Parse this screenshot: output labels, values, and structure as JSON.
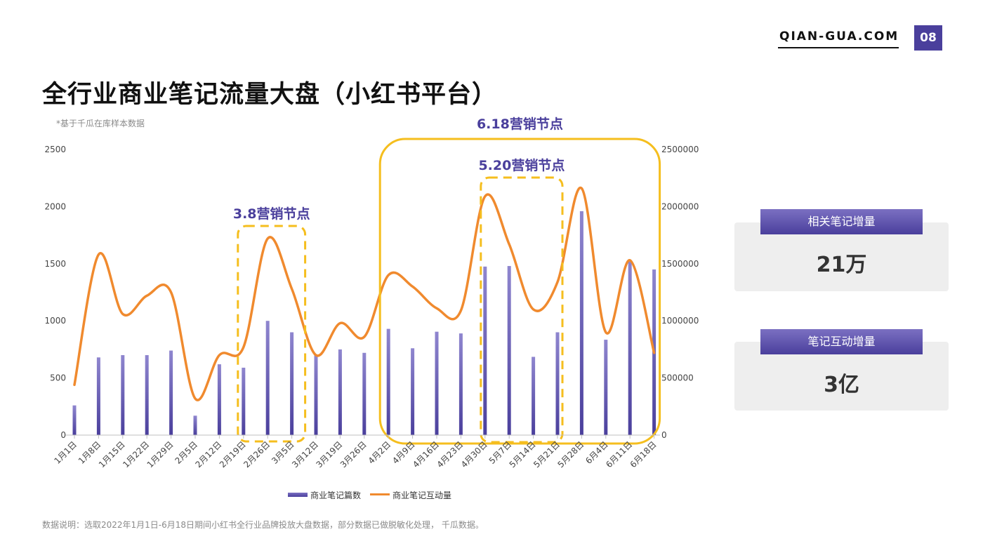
{
  "header": {
    "brand": "QIAN-GUA.COM",
    "page_number": "08"
  },
  "title": "全行业商业笔记流量大盘（小红书平台）",
  "subtitle": "*基于千瓜在库样本数据",
  "footnote": "数据说明：选取2022年1月1日-6月18日期间小红书全行业品牌投放大盘数据，部分数据已做脱敏化处理， 千瓜数据。",
  "cards": [
    {
      "label": "相关笔记增量",
      "value": "21万"
    },
    {
      "label": "笔记互动增量",
      "value": "3亿"
    }
  ],
  "colors": {
    "bar": "#5b4fa8",
    "line": "#f08a2e",
    "highlight": "#f5be1e",
    "annotation": "#4a3f9c"
  },
  "chart_data": {
    "type": "bar",
    "categories": [
      "1月1日",
      "1月8日",
      "1月15日",
      "1月22日",
      "1月29日",
      "2月5日",
      "2月12日",
      "2月19日",
      "2月26日",
      "3月5日",
      "3月12日",
      "3月19日",
      "3月26日",
      "4月2日",
      "4月9日",
      "4月16日",
      "4月23日",
      "4月30日",
      "5月7日",
      "5月14日",
      "5月21日",
      "5月28日",
      "6月4日",
      "6月11日",
      "6月18日"
    ],
    "series": [
      {
        "name": "商业笔记篇数",
        "type": "bar",
        "axis": "left",
        "values": [
          260,
          680,
          700,
          700,
          740,
          170,
          620,
          590,
          1000,
          900,
          700,
          750,
          720,
          930,
          760,
          905,
          890,
          1475,
          1480,
          685,
          900,
          1960,
          835,
          1520,
          1450
        ]
      },
      {
        "name": "商业笔记互动量",
        "type": "line",
        "axis": "right",
        "values": [
          440000,
          1580000,
          1060000,
          1220000,
          1250000,
          320000,
          700000,
          770000,
          1720000,
          1280000,
          700000,
          980000,
          860000,
          1400000,
          1300000,
          1110000,
          1090000,
          2090000,
          1670000,
          1100000,
          1340000,
          2160000,
          900000,
          1530000,
          720000
        ]
      }
    ],
    "y_left": {
      "min": 0,
      "max": 2500,
      "ticks": [
        "0",
        "500",
        "1000",
        "1500",
        "2000",
        "2500"
      ]
    },
    "y_right": {
      "min": 0,
      "max": 2500000,
      "ticks": [
        "0",
        "500000",
        "1000000",
        "1500000",
        "2000000",
        "2500000"
      ]
    },
    "annotations": [
      {
        "label": "3.8营销节点",
        "from": "2月19日",
        "to": "3月5日",
        "style": "dashed"
      },
      {
        "label": "6.18营销节点",
        "from": "4月2日",
        "to": "6月18日",
        "style": "solid"
      },
      {
        "label": "5.20营销节点",
        "from": "4月30日",
        "to": "5月21日",
        "style": "dashed"
      }
    ],
    "grid": false,
    "legend": "bottom"
  }
}
